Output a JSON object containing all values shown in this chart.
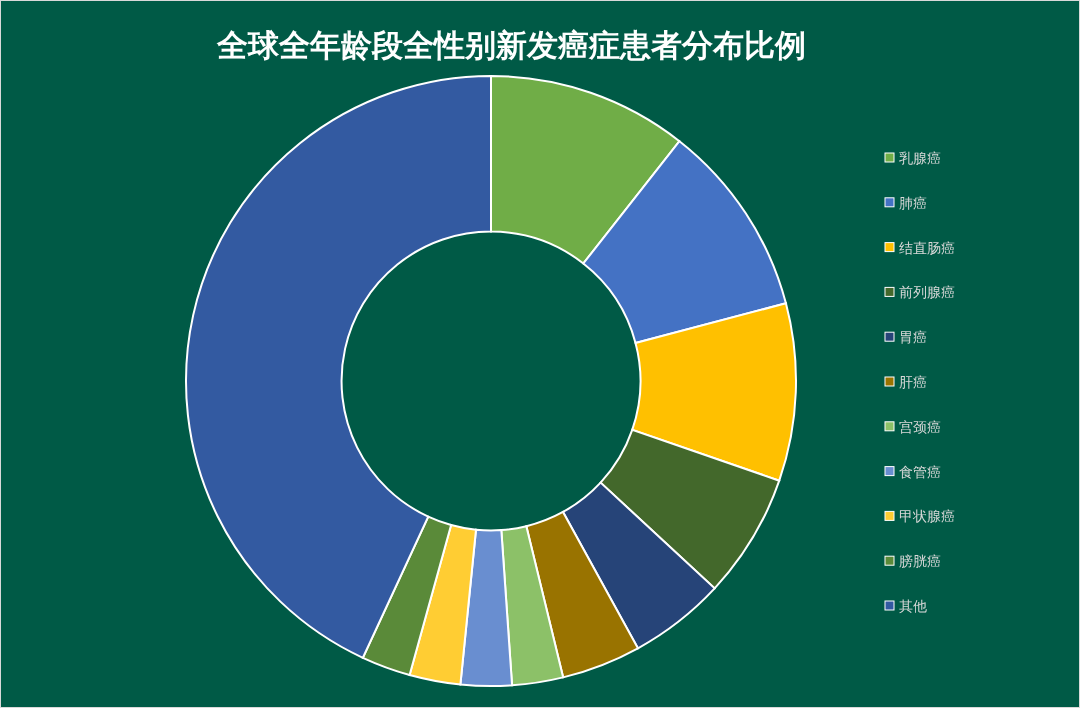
{
  "chart_data": {
    "type": "donut",
    "title": "全球全年龄段全性别新发癌症患者分布比例",
    "categories": [
      "乳腺癌",
      "肺癌",
      "结直肠癌",
      "前列腺癌",
      "胃癌",
      "肝癌",
      "宫颈癌",
      "食管癌",
      "甲状腺癌",
      "膀胱癌",
      "其他"
    ],
    "values": [
      10.6,
      10.3,
      9.4,
      6.6,
      5.1,
      4.2,
      2.7,
      2.7,
      2.7,
      2.6,
      43.1
    ],
    "colors": [
      "#70ad47",
      "#4472c4",
      "#ffc000",
      "#43682b",
      "#264478",
      "#997300",
      "#8cc168",
      "#698ed0",
      "#ffcd33",
      "#5a8a39",
      "#335aa1"
    ],
    "legend": "right"
  }
}
